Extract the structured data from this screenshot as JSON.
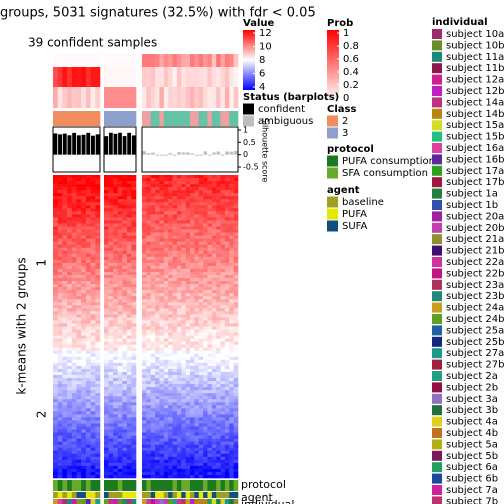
{
  "chart_data": {
    "type": "heatmap",
    "title": "groups, 5031 signatures (32.5%) with fdr < 0.05",
    "subtitle": "39 confident samples",
    "row_title": "k-means with 2 groups",
    "row_groups": [
      "1",
      "2"
    ],
    "annotation_labels": [
      "protocol",
      "agent",
      "individual"
    ],
    "value_legend": {
      "title": "Value",
      "ticks": [
        4,
        6,
        8,
        10,
        12
      ]
    },
    "prob_legend": {
      "title": "Prob",
      "ticks": [
        0,
        0.2,
        0.4,
        0.6,
        0.8,
        1
      ]
    },
    "status_legend": {
      "title": "Status (barplots)",
      "items": [
        {
          "label": "confident",
          "color": "#000000"
        },
        {
          "label": "ambiguous",
          "color": "#bebebe"
        }
      ]
    },
    "silhouette_axis": {
      "label": "Silhouette score",
      "ticks": [
        -0.5,
        0,
        0.5,
        1
      ]
    },
    "class_legend": {
      "title": "Class",
      "items": [
        {
          "label": "2",
          "color": "#f08c5e"
        },
        {
          "label": "3",
          "color": "#8da0cb"
        }
      ]
    },
    "protocol_legend": {
      "title": "protocol",
      "items": [
        {
          "label": "PUFA consumption",
          "color": "#1b7a1e"
        },
        {
          "label": "SFA consumption",
          "color": "#6aaa2a"
        }
      ]
    },
    "agent_legend": {
      "title": "agent",
      "items": [
        {
          "label": "baseline",
          "color": "#a0a020"
        },
        {
          "label": "PUFA",
          "color": "#e8e800"
        },
        {
          "label": "SUFA",
          "color": "#105080"
        }
      ]
    },
    "individual_legend": {
      "title": "individual",
      "items": [
        {
          "label": "subject 10a",
          "color": "#9b2d6a"
        },
        {
          "label": "subject 10b",
          "color": "#6b8e23"
        },
        {
          "label": "subject 11a",
          "color": "#1a8a7a"
        },
        {
          "label": "subject 11b",
          "color": "#8b1a4a"
        },
        {
          "label": "subject 12a",
          "color": "#d02090"
        },
        {
          "label": "subject 12b",
          "color": "#c020c0"
        },
        {
          "label": "subject 14a",
          "color": "#c03080"
        },
        {
          "label": "subject 14b",
          "color": "#b8860b"
        },
        {
          "label": "subject 15a",
          "color": "#d0e020"
        },
        {
          "label": "subject 15b",
          "color": "#20c080"
        },
        {
          "label": "subject 16a",
          "color": "#e040a0"
        },
        {
          "label": "subject 16b",
          "color": "#5a2a9a"
        },
        {
          "label": "subject 17a",
          "color": "#30a020"
        },
        {
          "label": "subject 17b",
          "color": "#a01840"
        },
        {
          "label": "subject 1a",
          "color": "#208040"
        },
        {
          "label": "subject 1b",
          "color": "#3050b0"
        },
        {
          "label": "subject 20a",
          "color": "#a020a0"
        },
        {
          "label": "subject 20b",
          "color": "#c040b0"
        },
        {
          "label": "subject 21a",
          "color": "#909030"
        },
        {
          "label": "subject 21b",
          "color": "#401070"
        },
        {
          "label": "subject 22a",
          "color": "#d030a0"
        },
        {
          "label": "subject 22b",
          "color": "#c01880"
        },
        {
          "label": "subject 23a",
          "color": "#b03060"
        },
        {
          "label": "subject 23b",
          "color": "#208878"
        },
        {
          "label": "subject 24a",
          "color": "#c8a020"
        },
        {
          "label": "subject 24b",
          "color": "#60a020"
        },
        {
          "label": "subject 25a",
          "color": "#2060a0"
        },
        {
          "label": "subject 25b",
          "color": "#102880"
        },
        {
          "label": "subject 27a",
          "color": "#1a9a8a"
        },
        {
          "label": "subject 27b",
          "color": "#a02040"
        },
        {
          "label": "subject 2a",
          "color": "#20a080"
        },
        {
          "label": "subject 2b",
          "color": "#901040"
        },
        {
          "label": "subject 3a",
          "color": "#9070c0"
        },
        {
          "label": "subject 3b",
          "color": "#207040"
        },
        {
          "label": "subject 4a",
          "color": "#e0d020"
        },
        {
          "label": "subject 4b",
          "color": "#c07020"
        },
        {
          "label": "subject 5a",
          "color": "#b0b010"
        },
        {
          "label": "subject 5b",
          "color": "#7a1a5a"
        },
        {
          "label": "subject 6a",
          "color": "#20a060"
        },
        {
          "label": "subject 6b",
          "color": "#1a4aa0"
        },
        {
          "label": "subject 7a",
          "color": "#d020a0"
        },
        {
          "label": "subject 7b",
          "color": "#c03070"
        }
      ]
    }
  }
}
